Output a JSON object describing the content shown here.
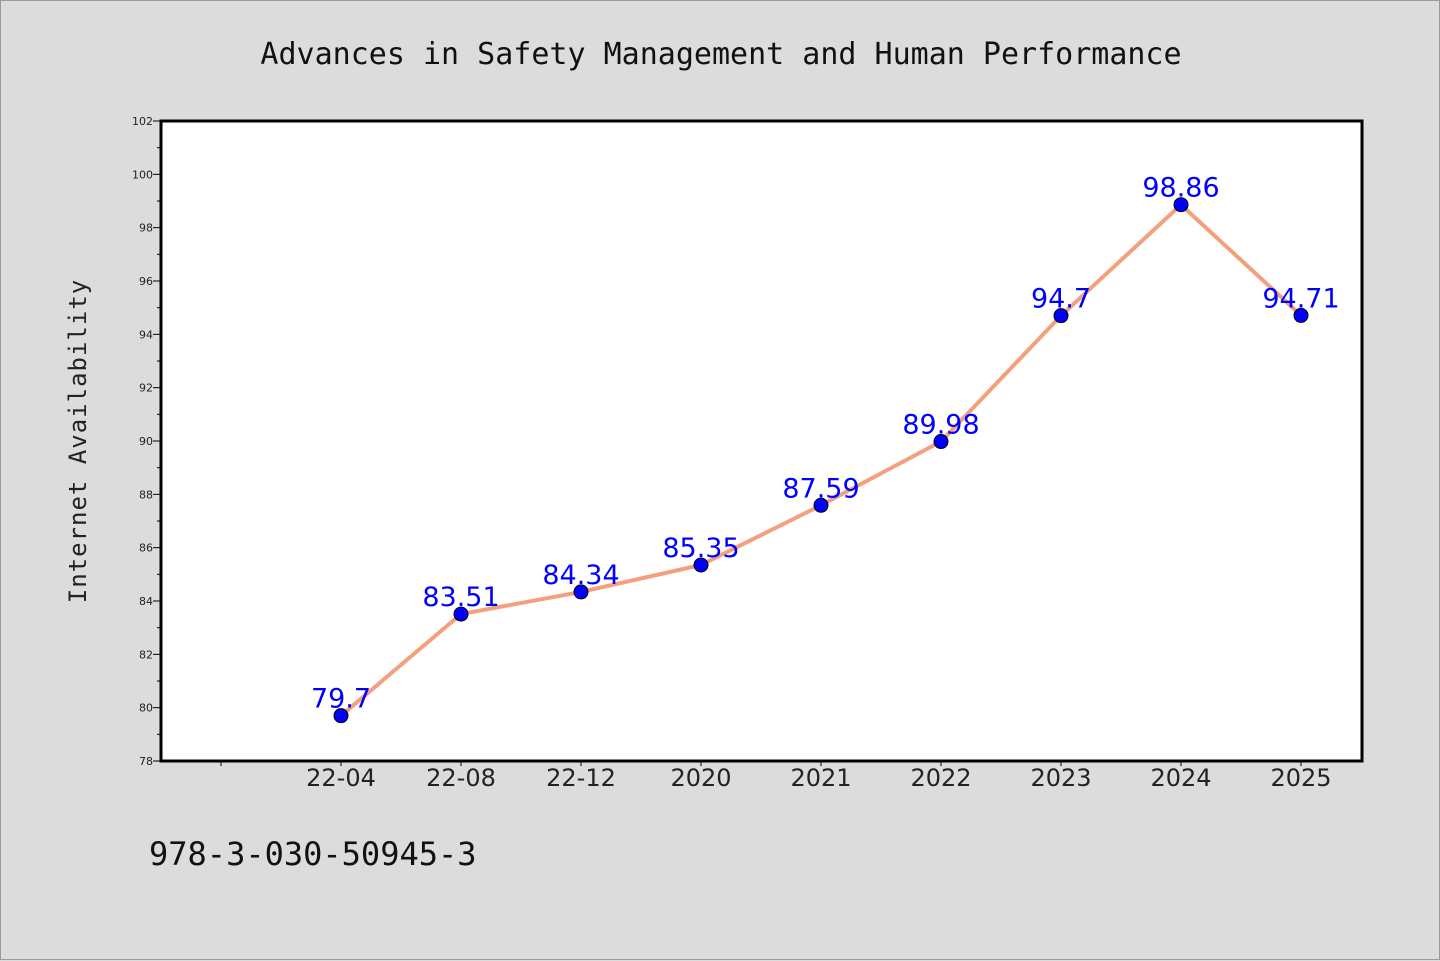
{
  "chart_data": {
    "type": "line",
    "title": "Advances in Safety Management and Human Performance",
    "xlabel": "",
    "ylabel": "Internet Availability",
    "categories": [
      "22-04",
      "22-08",
      "22-12",
      "2020",
      "2021",
      "2022",
      "2023",
      "2024",
      "2025"
    ],
    "series": [
      {
        "values": [
          79.7,
          83.51,
          84.34,
          85.35,
          87.59,
          89.98,
          94.7,
          98.86,
          94.71
        ],
        "data_labels": [
          "79.7",
          "83.51",
          "84.34",
          "85.35",
          "87.59",
          "89.98",
          "94.7",
          "98.86",
          "94.71"
        ]
      }
    ],
    "ylim": [
      78,
      102
    ],
    "yticks": [
      78,
      80,
      82,
      84,
      86,
      88,
      90,
      92,
      94,
      96,
      98,
      100,
      102
    ],
    "grid": false,
    "legend": "none",
    "colors": {
      "line": "#f4a07e",
      "marker": "#0000ff",
      "data_label": "#0000ff",
      "background": "#dcdcdc",
      "plot_background": "#ffffff"
    }
  },
  "footer": {
    "isbn": "978-3-030-50945-3"
  }
}
